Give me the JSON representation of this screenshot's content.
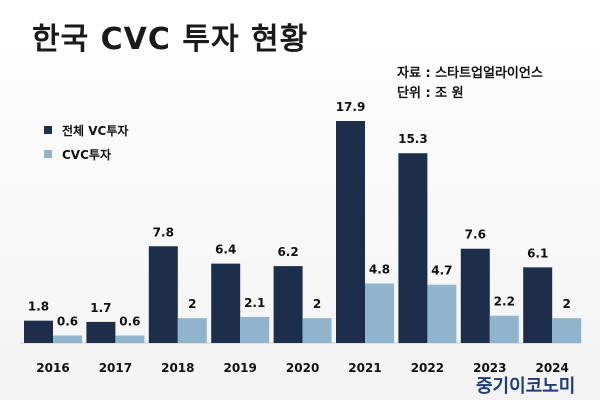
{
  "title": "한국 CVC 투자 현황",
  "source_line": "자료 : 스타트업얼라이언스",
  "unit_line": "단위 : 조 원",
  "brand": "중기이코노미",
  "colors": {
    "total": "#1c2e4a",
    "cvc": "#8fb4cc"
  },
  "chart_data": {
    "type": "bar",
    "title": "한국 CVC 투자 현황",
    "xlabel": "",
    "ylabel": "",
    "categories": [
      "2016",
      "2017",
      "2018",
      "2019",
      "2020",
      "2021",
      "2022",
      "2023",
      "2024"
    ],
    "series": [
      {
        "name": "전체 VC투자",
        "values": [
          1.8,
          1.7,
          7.8,
          6.4,
          6.2,
          17.9,
          15.3,
          7.6,
          6.1
        ]
      },
      {
        "name": "CVC투자",
        "values": [
          0.6,
          0.6,
          2,
          2.1,
          2,
          4.8,
          4.7,
          2.2,
          2
        ]
      }
    ],
    "ylim": [
      0,
      17.9
    ],
    "grid": false,
    "legend": "top-left",
    "unit": "조 원"
  }
}
